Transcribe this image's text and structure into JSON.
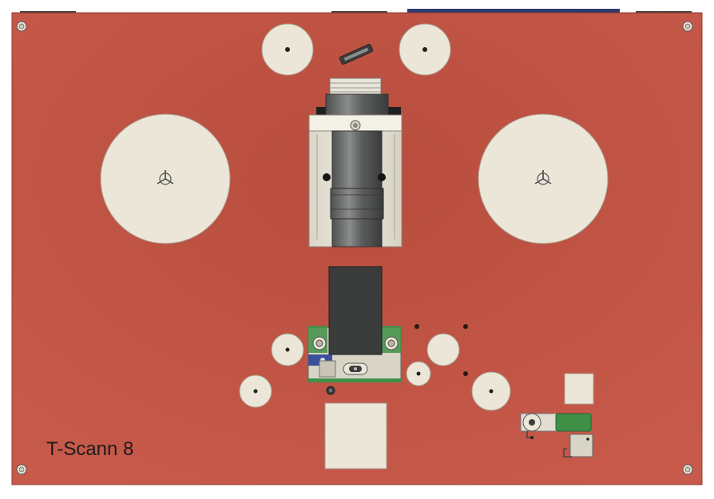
{
  "board": {
    "label": "T-Scann 8",
    "colors": {
      "board": "#c05243",
      "board_edge": "#8f3a2e",
      "reel": "#ece6d8",
      "reel_edge": "#a89f8f",
      "lens_body": "#6f716f",
      "lens_dark": "#3c3e3d",
      "plate": "#e8e4d6",
      "camera_block": "#3a3c3b",
      "pcb_green": "#3f8f47",
      "blue_part": "#3b4f9a"
    }
  }
}
